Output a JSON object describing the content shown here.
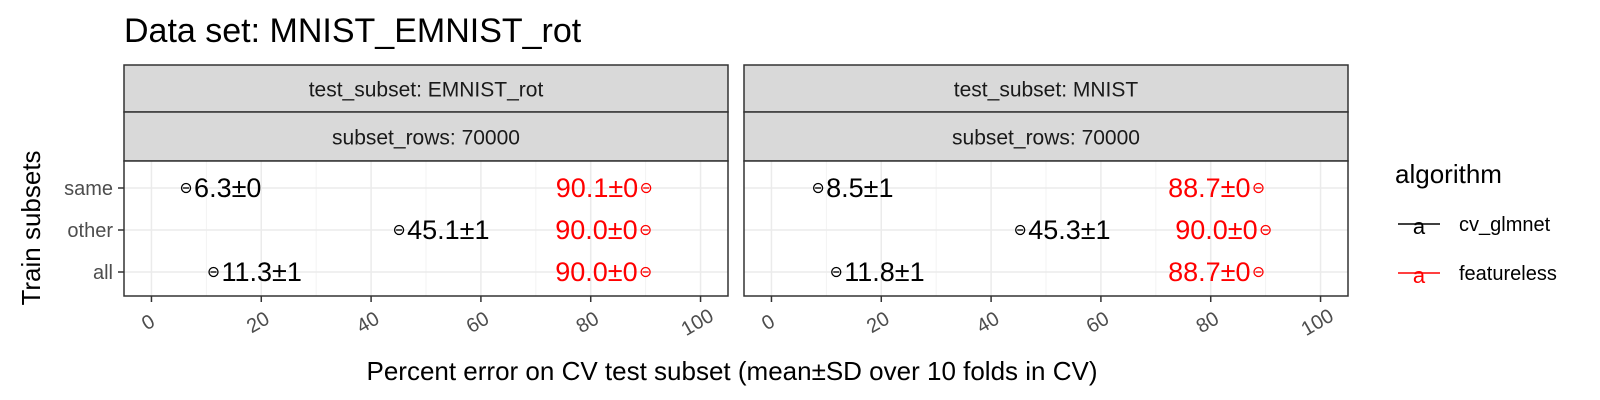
{
  "chart_data": {
    "type": "scatter",
    "title": "Data set: MNIST_EMNIST_rot",
    "xlabel": "Percent error on CV test subset (mean±SD over 10 folds in CV)",
    "ylabel": "Train subsets",
    "xlim": [
      -5,
      105
    ],
    "x_ticks": [
      0,
      20,
      40,
      60,
      80,
      100
    ],
    "y_categories": [
      "same",
      "other",
      "all"
    ],
    "grid": true,
    "legend": {
      "title": "algorithm",
      "placement": "right",
      "entries": [
        {
          "name": "cv_glmnet",
          "color": "#000000"
        },
        {
          "name": "featureless",
          "color": "#ff0000"
        }
      ]
    },
    "colors": {
      "cv_glmnet": "#000000",
      "featureless": "#ff0000",
      "strip": "#d9d9d9",
      "grid": "#ebebeb"
    },
    "panels": [
      {
        "strip_top": "test_subset: EMNIST_rot",
        "strip_bottom": "subset_rows: 70000",
        "points": [
          {
            "series": "cv_glmnet",
            "y": "same",
            "x": 6.3,
            "label": "6.3±0"
          },
          {
            "series": "cv_glmnet",
            "y": "other",
            "x": 45.1,
            "label": "45.1±1"
          },
          {
            "series": "cv_glmnet",
            "y": "all",
            "x": 11.3,
            "label": "11.3±1"
          },
          {
            "series": "featureless",
            "y": "same",
            "x": 90.1,
            "label": "90.1±0"
          },
          {
            "series": "featureless",
            "y": "other",
            "x": 90.0,
            "label": "90.0±0"
          },
          {
            "series": "featureless",
            "y": "all",
            "x": 90.0,
            "label": "90.0±0"
          }
        ]
      },
      {
        "strip_top": "test_subset: MNIST",
        "strip_bottom": "subset_rows: 70000",
        "points": [
          {
            "series": "cv_glmnet",
            "y": "same",
            "x": 8.5,
            "label": "8.5±1"
          },
          {
            "series": "cv_glmnet",
            "y": "other",
            "x": 45.3,
            "label": "45.3±1"
          },
          {
            "series": "cv_glmnet",
            "y": "all",
            "x": 11.8,
            "label": "11.8±1"
          },
          {
            "series": "featureless",
            "y": "same",
            "x": 88.7,
            "label": "88.7±0"
          },
          {
            "series": "featureless",
            "y": "other",
            "x": 90.0,
            "label": "90.0±0"
          },
          {
            "series": "featureless",
            "y": "all",
            "x": 88.7,
            "label": "88.7±0"
          }
        ]
      }
    ]
  }
}
